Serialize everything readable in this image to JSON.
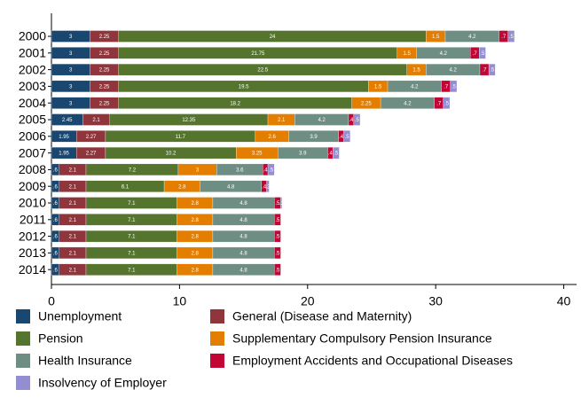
{
  "chart_data": {
    "type": "bar",
    "orientation": "horizontal",
    "stacked": true,
    "categories": [
      "2000",
      "2001",
      "2002",
      "2003",
      "2004",
      "2005",
      "2006",
      "2007",
      "2008",
      "2009",
      "2010",
      "2011",
      "2012",
      "2013",
      "2014"
    ],
    "xlim": [
      0,
      41
    ],
    "xticks": [
      0,
      10,
      20,
      30,
      40
    ],
    "series": [
      {
        "name": "Unemployment",
        "color": "#1a476f",
        "values": [
          3,
          3,
          3,
          3,
          3,
          2.45,
          1.95,
          1.95,
          0.6,
          0.6,
          0.6,
          0.6,
          0.6,
          0.6,
          0.6
        ],
        "value_labels": [
          "3",
          "3",
          "3",
          "3",
          "3",
          "2.45",
          "1.95",
          "1.95",
          ".6",
          ".6",
          ".6",
          ".6",
          ".6",
          ".6",
          ".6"
        ]
      },
      {
        "name": "General (Disease and Maternity)",
        "color": "#90353b",
        "values": [
          2.25,
          2.25,
          2.25,
          2.25,
          2.25,
          2.1,
          2.27,
          2.27,
          2.1,
          2.1,
          2.1,
          2.1,
          2.1,
          2.1,
          2.1
        ],
        "value_labels": [
          "2.25",
          "2.25",
          "2.25",
          "2.25",
          "2.25",
          "2.1",
          "2.27",
          "2.27",
          "2.1",
          "2.1",
          "2.1",
          "2.1",
          "2.1",
          "2.1",
          "2.1"
        ]
      },
      {
        "name": "Pension",
        "color": "#55752f",
        "values": [
          24,
          21.75,
          22.5,
          19.5,
          18.2,
          12.35,
          11.7,
          10.2,
          7.2,
          6.1,
          7.1,
          7.1,
          7.1,
          7.1,
          7.1
        ],
        "value_labels": [
          "24",
          "21.75",
          "22.5",
          "19.5",
          "18.2",
          "12.35",
          "11.7",
          "10.2",
          "7.2",
          "6.1",
          "7.1",
          "7.1",
          "7.1",
          "7.1",
          "7.1"
        ]
      },
      {
        "name": "Supplementary Compulsory Pension Insurance",
        "color": "#e37e00",
        "values": [
          1.5,
          1.5,
          1.5,
          1.5,
          2.25,
          2.1,
          2.6,
          3.25,
          3,
          2.8,
          2.8,
          2.8,
          2.8,
          2.8,
          2.8
        ],
        "value_labels": [
          "1.5",
          "1.5",
          "1.5",
          "1.5",
          "2.25",
          "2.1",
          "2.6",
          "3.25",
          "3",
          "2.8",
          "2.8",
          "2.8",
          "2.8",
          "2.8",
          "2.8"
        ]
      },
      {
        "name": "Health Insurance",
        "color": "#6e8e84",
        "values": [
          4.2,
          4.2,
          4.2,
          4.2,
          4.2,
          4.2,
          3.9,
          3.9,
          3.6,
          4.8,
          4.8,
          4.8,
          4.8,
          4.8,
          4.8
        ],
        "value_labels": [
          "4.2",
          "4.2",
          "4.2",
          "4.2",
          "4.2",
          "4.2",
          "3.9",
          "3.9",
          "3.6",
          "4.8",
          "4.8",
          "4.8",
          "4.8",
          "4.8",
          "4.8"
        ]
      },
      {
        "name": "Employment Accidents and Occupational Diseases",
        "color": "#c10534",
        "values": [
          0.7,
          0.7,
          0.7,
          0.7,
          0.7,
          0.4,
          0.4,
          0.4,
          0.4,
          0.4,
          0.5,
          0.5,
          0.5,
          0.5,
          0.5
        ],
        "value_labels": [
          ".7",
          ".7",
          ".7",
          ".7",
          ".7",
          ".4",
          ".4",
          ".4",
          ".4",
          ".4",
          ".5",
          ".5",
          ".5",
          ".5",
          ".5"
        ]
      },
      {
        "name": "Insolvency of Employer",
        "color": "#938dd2",
        "values": [
          0.5,
          0.5,
          0.5,
          0.5,
          0.5,
          0.5,
          0.5,
          0.5,
          0.5,
          0.2,
          0.1,
          null,
          null,
          null,
          null
        ],
        "value_labels": [
          ".5",
          ".5",
          ".5",
          ".5",
          ".5",
          ".5",
          ".5",
          ".5",
          ".5",
          ".2",
          ".1",
          null,
          null,
          null,
          null
        ]
      }
    ]
  }
}
